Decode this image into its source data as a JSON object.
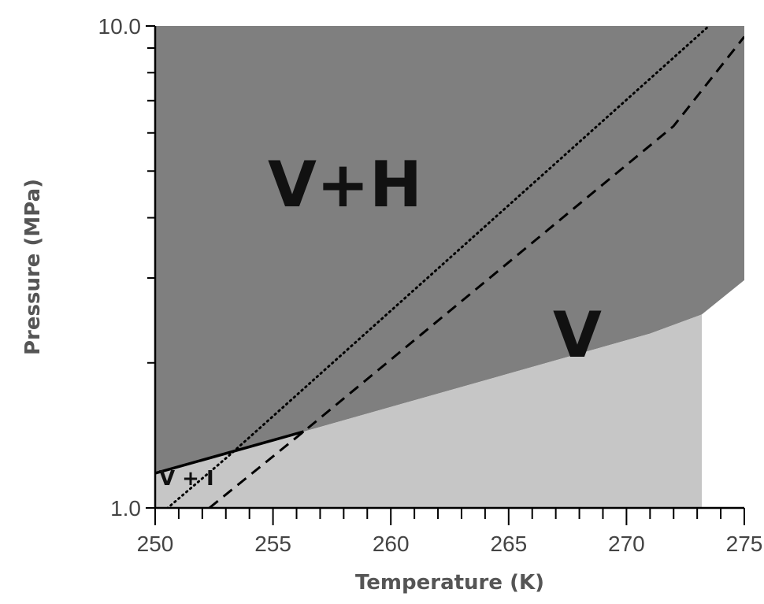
{
  "chart_data": {
    "type": "area",
    "title": "",
    "xlabel": "Temperature (K)",
    "ylabel": "Pressure (MPa)",
    "xlim": [
      250,
      275
    ],
    "ylim": [
      1.0,
      10.0
    ],
    "yscale": "log",
    "grid": false,
    "x_ticks": [
      250,
      255,
      260,
      265,
      270,
      275
    ],
    "x_tick_labels": [
      "250",
      "255",
      "260",
      "265",
      "270",
      "275"
    ],
    "y_tick_labels": [
      "1.0",
      "10.0"
    ],
    "y_minor_ticks": [
      2,
      3,
      4,
      5,
      6,
      7,
      8,
      9
    ],
    "colors": {
      "vh_region": "#7f7f7f",
      "v_region": "#c6c6c6",
      "background": "#ffffff",
      "lines": "#000000"
    },
    "regions": [
      {
        "label": "V+H",
        "boundary": [
          [
            250,
            1.18
          ],
          [
            256.3,
            1.44
          ],
          [
            271,
            2.3
          ],
          [
            273.2,
            2.52
          ],
          [
            275,
            2.97
          ]
        ]
      },
      {
        "label": "V",
        "upper_boundary": [
          [
            250,
            1.18
          ],
          [
            256.3,
            1.44
          ],
          [
            271,
            2.3
          ],
          [
            273.2,
            2.52
          ]
        ],
        "right_edge_x": 273.2
      },
      {
        "label": "V + I",
        "upper_boundary": [
          [
            250,
            1.18
          ],
          [
            256.3,
            1.44
          ]
        ]
      }
    ],
    "series": [
      {
        "style": "solid",
        "points": [
          [
            250,
            1.18
          ],
          [
            256.3,
            1.44
          ]
        ]
      },
      {
        "style": "dotted",
        "points": [
          [
            250,
            0.95
          ],
          [
            253.1,
            1.28
          ],
          [
            273.5,
            10.0
          ]
        ]
      },
      {
        "style": "dashed",
        "points": [
          [
            252.3,
            1.0
          ],
          [
            256.3,
            1.44
          ],
          [
            272,
            6.2
          ],
          [
            275,
            9.5
          ]
        ]
      }
    ]
  }
}
